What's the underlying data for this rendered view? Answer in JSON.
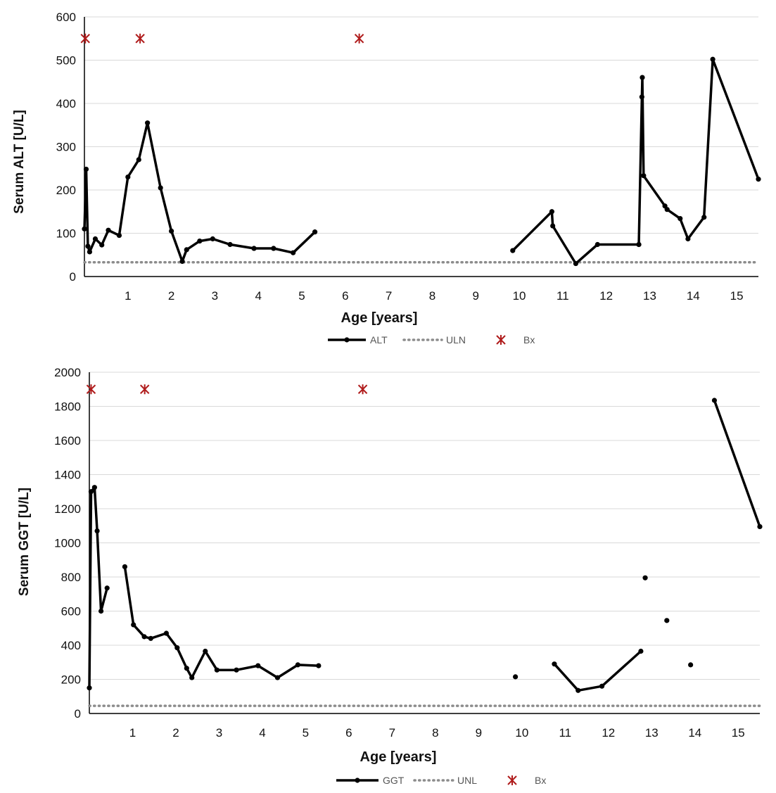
{
  "charts": [
    {
      "id": "alt",
      "type": "line",
      "ylabel": "Serum ALT [U/L]",
      "xlabel": "Age  [years]",
      "ylim": [
        0,
        600
      ],
      "yticks": [
        0,
        100,
        200,
        300,
        400,
        500,
        600
      ],
      "xlim": [
        0,
        15.5
      ],
      "xticks": [
        1,
        2,
        3,
        4,
        5,
        6,
        7,
        8,
        9,
        10,
        11,
        12,
        13,
        14,
        15
      ],
      "grid": true,
      "series": [
        {
          "name": "ALT",
          "segments": [
            [
              [
                0.0,
                110
              ],
              [
                0.04,
                248
              ],
              [
                0.08,
                70
              ],
              [
                0.12,
                57
              ],
              [
                0.25,
                87
              ],
              [
                0.4,
                73
              ],
              [
                0.55,
                107
              ],
              [
                0.8,
                95
              ],
              [
                1.0,
                230
              ],
              [
                1.25,
                270
              ],
              [
                1.45,
                355
              ],
              [
                1.75,
                205
              ],
              [
                2.0,
                105
              ],
              [
                2.25,
                35
              ],
              [
                2.35,
                62
              ],
              [
                2.65,
                82
              ],
              [
                2.95,
                87
              ],
              [
                3.35,
                74
              ],
              [
                3.9,
                65
              ],
              [
                4.35,
                65
              ],
              [
                4.8,
                55
              ],
              [
                5.3,
                103
              ]
            ],
            [
              [
                9.85,
                60
              ],
              [
                10.75,
                150
              ],
              [
                10.77,
                117
              ],
              [
                11.3,
                30
              ],
              [
                11.8,
                74
              ],
              [
                12.75,
                74
              ]
            ],
            [
              [
                12.75,
                74
              ],
              [
                12.82,
                415
              ],
              [
                12.83,
                460
              ],
              [
                12.86,
                233
              ],
              [
                13.35,
                163
              ],
              [
                13.4,
                155
              ],
              [
                13.7,
                134
              ],
              [
                13.88,
                87
              ],
              [
                14.25,
                137
              ],
              [
                14.45,
                502
              ],
              [
                15.5,
                225
              ]
            ]
          ]
        }
      ],
      "reference_line": {
        "name": "ULN",
        "value": 33
      },
      "biopsies": {
        "name": "Bx",
        "x": [
          0.02,
          1.28,
          6.32
        ],
        "y": 550
      },
      "legend": {
        "position": "bottom",
        "items": [
          "ALT",
          "ULN",
          "Bx"
        ]
      }
    },
    {
      "id": "ggt",
      "type": "line",
      "ylabel": "Serum GGT [U/L]",
      "xlabel": "Age [years]",
      "ylim": [
        0,
        2000
      ],
      "yticks": [
        0,
        200,
        400,
        600,
        800,
        1000,
        1200,
        1400,
        1600,
        1800,
        2000
      ],
      "xlim": [
        0,
        15.5
      ],
      "xticks": [
        1,
        2,
        3,
        4,
        5,
        6,
        7,
        8,
        9,
        10,
        11,
        12,
        13,
        14,
        15
      ],
      "grid": true,
      "series": [
        {
          "name": "GGT",
          "segments": [
            [
              [
                0.0,
                150
              ],
              [
                0.04,
                1300
              ],
              [
                0.12,
                1325
              ],
              [
                0.18,
                1070
              ],
              [
                0.27,
                600
              ],
              [
                0.41,
                735
              ]
            ],
            [
              [
                0.82,
                860
              ],
              [
                1.02,
                520
              ],
              [
                1.27,
                450
              ],
              [
                1.42,
                440
              ],
              [
                1.78,
                470
              ],
              [
                2.03,
                385
              ],
              [
                2.25,
                265
              ],
              [
                2.37,
                210
              ],
              [
                2.68,
                365
              ],
              [
                2.95,
                255
              ],
              [
                3.4,
                255
              ],
              [
                3.9,
                280
              ],
              [
                4.35,
                210
              ],
              [
                4.82,
                285
              ],
              [
                5.3,
                280
              ]
            ],
            [
              [
                9.85,
                215
              ]
            ],
            [
              [
                10.75,
                290
              ],
              [
                11.3,
                135
              ],
              [
                11.85,
                160
              ],
              [
                12.75,
                365
              ]
            ],
            [
              [
                12.85,
                795
              ]
            ],
            [
              [
                13.35,
                545
              ]
            ],
            [
              [
                13.9,
                285
              ]
            ],
            [
              [
                14.45,
                1835
              ],
              [
                15.5,
                1095
              ]
            ]
          ]
        }
      ],
      "reference_line": {
        "name": "UNL",
        "value": 45
      },
      "biopsies": {
        "name": "Bx",
        "x": [
          0.04,
          1.28,
          6.32
        ],
        "y": 1900
      },
      "legend": {
        "position": "bottom",
        "items": [
          "GGT",
          "UNL",
          "Bx"
        ]
      }
    }
  ]
}
